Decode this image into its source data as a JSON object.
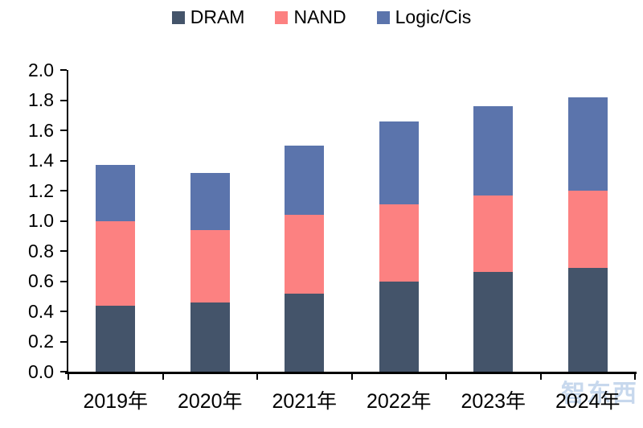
{
  "watermark": {
    "text": "智东西"
  },
  "chart_data": {
    "type": "bar",
    "variant": "stacked",
    "title": "",
    "xlabel": "",
    "ylabel": "",
    "grid": false,
    "legend_position": "top-center",
    "categories": [
      "2019年",
      "2020年",
      "2021年",
      "2022年",
      "2023年",
      "2024年"
    ],
    "series": [
      {
        "name": "DRAM",
        "color": "#44546A",
        "values": [
          0.44,
          0.46,
          0.52,
          0.6,
          0.66,
          0.69
        ]
      },
      {
        "name": "NAND",
        "color": "#FC8181",
        "values": [
          0.56,
          0.48,
          0.52,
          0.51,
          0.51,
          0.51
        ]
      },
      {
        "name": "Logic/Cis",
        "color": "#5B74AC",
        "values": [
          0.37,
          0.38,
          0.46,
          0.55,
          0.59,
          0.62
        ]
      }
    ],
    "stack_totals": [
      1.37,
      1.32,
      1.5,
      1.66,
      1.76,
      1.82
    ],
    "ylim": [
      0.0,
      2.0
    ],
    "ytick_step": 0.2,
    "ytick_labels": [
      "0.0",
      "0.2",
      "0.4",
      "0.6",
      "0.8",
      "1.0",
      "1.2",
      "1.4",
      "1.6",
      "1.8",
      "2.0"
    ]
  }
}
